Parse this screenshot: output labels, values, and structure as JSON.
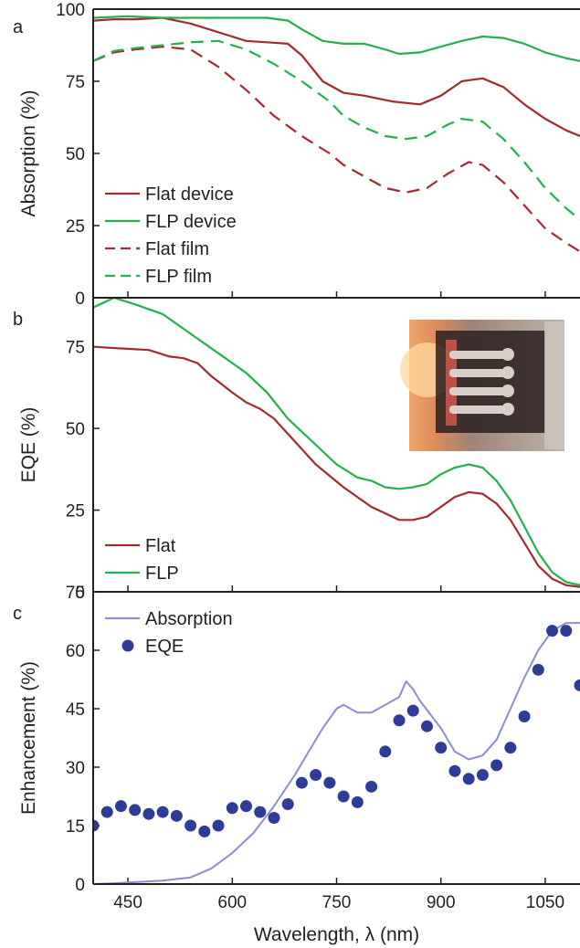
{
  "colors": {
    "flat": "#a32a2e",
    "flp": "#22b14c",
    "absorption_enh": "#8a8fcf",
    "eqe_points": "#2e3b97",
    "axis": "#231f20"
  },
  "chart_data": [
    {
      "panel": "a",
      "type": "line",
      "ylabel": "Absorption (%)",
      "xlim": [
        400,
        1100
      ],
      "ylim": [
        0,
        100
      ],
      "yticks": [
        0,
        25,
        50,
        75,
        100
      ],
      "xticks": [
        450,
        600,
        750,
        900,
        1050
      ],
      "legend": "bottom-left",
      "series": [
        {
          "name": "Flat device",
          "style": "solid",
          "color": "#a32a2e",
          "x": [
            400,
            430,
            460,
            500,
            540,
            580,
            620,
            650,
            680,
            700,
            730,
            760,
            790,
            830,
            870,
            900,
            930,
            960,
            990,
            1020,
            1050,
            1080,
            1100
          ],
          "y": [
            96,
            96.5,
            96.5,
            97,
            95,
            92,
            89,
            88.5,
            88,
            84,
            75,
            71,
            70,
            68,
            67,
            70,
            75,
            76,
            73,
            67,
            62,
            58,
            56
          ]
        },
        {
          "name": "FLP device",
          "style": "solid",
          "color": "#22b14c",
          "x": [
            400,
            450,
            500,
            550,
            600,
            650,
            680,
            700,
            730,
            760,
            790,
            820,
            840,
            870,
            900,
            930,
            960,
            990,
            1020,
            1050,
            1080,
            1100
          ],
          "y": [
            97,
            97.5,
            97,
            97,
            97,
            97,
            96,
            93,
            89,
            88,
            88,
            86,
            84.5,
            85,
            87,
            89,
            90.5,
            90,
            88,
            85,
            83,
            82
          ]
        },
        {
          "name": "Flat film",
          "style": "dashed",
          "color": "#a32a2e",
          "x": [
            400,
            430,
            460,
            500,
            540,
            580,
            620,
            660,
            700,
            740,
            760,
            790,
            820,
            850,
            880,
            910,
            940,
            960,
            990,
            1020,
            1050,
            1080,
            1100
          ],
          "y": [
            82,
            85,
            86,
            87,
            86,
            80,
            72,
            63,
            56,
            50,
            46,
            42,
            38,
            36.5,
            38,
            43,
            47,
            46,
            40,
            32,
            24,
            19,
            16
          ]
        },
        {
          "name": "FLP film",
          "style": "dashed",
          "color": "#22b14c",
          "x": [
            400,
            430,
            460,
            500,
            540,
            580,
            620,
            660,
            700,
            740,
            760,
            790,
            820,
            850,
            880,
            910,
            930,
            960,
            990,
            1020,
            1050,
            1080,
            1100
          ],
          "y": [
            82,
            85.5,
            86.5,
            87.5,
            88.5,
            89,
            86,
            81,
            75,
            68,
            63,
            59,
            56,
            55,
            56,
            60,
            62,
            61,
            55,
            47,
            38,
            31,
            27
          ]
        }
      ]
    },
    {
      "panel": "b",
      "type": "line",
      "ylabel": "EQE (%)",
      "xlim": [
        400,
        1100
      ],
      "ylim": [
        0,
        90
      ],
      "yticks": [
        0,
        25,
        50,
        75
      ],
      "xticks": [
        450,
        600,
        750,
        900,
        1050
      ],
      "legend": "bottom-left",
      "inset": "photo of device",
      "series": [
        {
          "name": "Flat",
          "color": "#a32a2e",
          "x": [
            400,
            440,
            480,
            510,
            530,
            550,
            570,
            600,
            620,
            640,
            660,
            690,
            720,
            760,
            800,
            840,
            860,
            880,
            900,
            920,
            940,
            960,
            980,
            1000,
            1020,
            1040,
            1060,
            1080,
            1100
          ],
          "y": [
            75,
            74.5,
            74,
            72,
            71.5,
            70,
            66,
            61,
            58,
            56,
            53,
            46,
            39,
            32,
            26,
            22,
            22,
            23,
            26,
            29,
            30.5,
            30,
            27,
            22,
            15,
            8,
            4,
            2,
            1.5
          ]
        },
        {
          "name": "FLP",
          "color": "#22b14c",
          "x": [
            400,
            430,
            460,
            500,
            540,
            580,
            620,
            650,
            680,
            720,
            750,
            780,
            800,
            820,
            840,
            860,
            880,
            900,
            920,
            940,
            960,
            980,
            1000,
            1020,
            1040,
            1060,
            1080,
            1100
          ],
          "y": [
            87,
            90,
            88,
            85,
            79,
            73,
            67,
            61,
            53,
            45,
            39,
            35,
            34,
            32,
            31.5,
            32,
            33,
            36,
            38,
            39,
            38,
            34,
            28,
            20,
            12,
            6,
            3,
            2
          ]
        }
      ]
    },
    {
      "panel": "c",
      "type": "scatter",
      "ylabel": "Enhancement (%)",
      "xlabel": "Wavelength,  λ (nm)",
      "xlim": [
        400,
        1100
      ],
      "ylim": [
        0,
        75
      ],
      "yticks": [
        0,
        15,
        30,
        45,
        60,
        75
      ],
      "xticks": [
        450,
        600,
        750,
        900,
        1050
      ],
      "legend": "top-left",
      "series": [
        {
          "name": "Absorption",
          "kind": "line",
          "color": "#8a8fcf",
          "x": [
            400,
            430,
            460,
            500,
            540,
            570,
            600,
            630,
            660,
            690,
            710,
            730,
            750,
            760,
            780,
            800,
            820,
            840,
            850,
            860,
            870,
            900,
            920,
            940,
            960,
            980,
            1000,
            1020,
            1040,
            1060,
            1080,
            1100
          ],
          "y": [
            0,
            0.2,
            0.5,
            0.9,
            1.7,
            4,
            8,
            13,
            20,
            28,
            34,
            40,
            45,
            46,
            44,
            44,
            46,
            48,
            52,
            50,
            47,
            40,
            34,
            32,
            33,
            37,
            45,
            53,
            60,
            65,
            67,
            67
          ]
        },
        {
          "name": "EQE",
          "kind": "scatter",
          "color": "#2e3b97",
          "x": [
            400,
            420,
            440,
            460,
            480,
            500,
            520,
            540,
            560,
            580,
            600,
            620,
            640,
            660,
            680,
            700,
            720,
            740,
            760,
            780,
            800,
            820,
            840,
            860,
            880,
            900,
            920,
            940,
            960,
            980,
            1000,
            1020,
            1040,
            1060,
            1080,
            1100
          ],
          "y": [
            15,
            18.5,
            20,
            19,
            18,
            18.5,
            17.5,
            15,
            13.5,
            15,
            19.5,
            20,
            18.5,
            17,
            20.5,
            26,
            28,
            26,
            22.5,
            21,
            25,
            34,
            42,
            44.5,
            40.5,
            35,
            29,
            27,
            28,
            30.5,
            35,
            43,
            55,
            65,
            65,
            51
          ]
        }
      ]
    }
  ]
}
